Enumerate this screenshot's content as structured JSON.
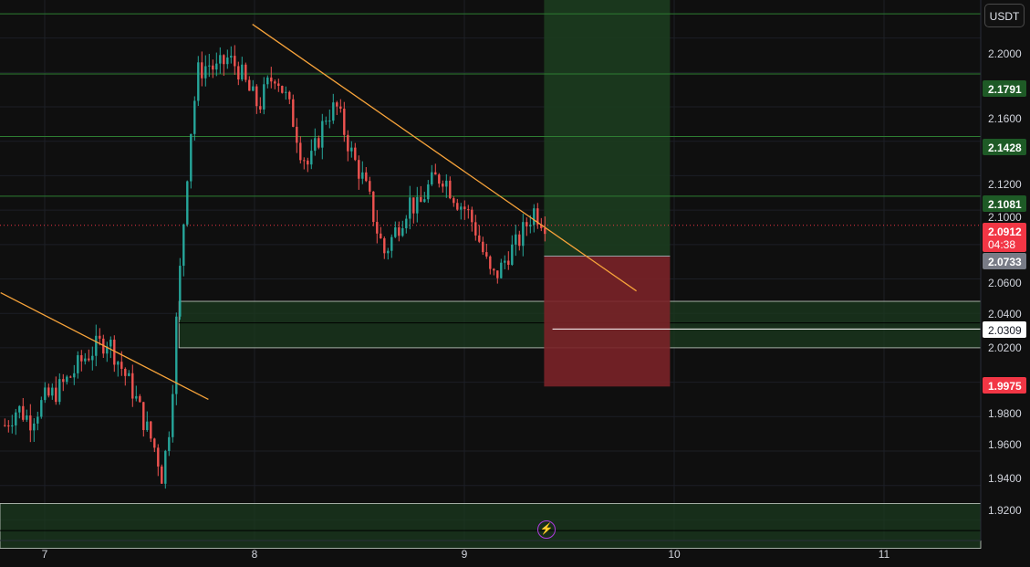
{
  "toolbar": {
    "currency": "USDT"
  },
  "price_scale": {
    "ticks": [
      "2.2000",
      "2.1600",
      "2.1200",
      "2.1000",
      "2.0600",
      "2.0400",
      "2.0200",
      "1.9800",
      "1.9600",
      "1.9400",
      "1.9200"
    ]
  },
  "time_scale": {
    "ticks": [
      "7",
      "8",
      "9",
      "10",
      "11"
    ]
  },
  "price_tags": {
    "tp2": "2.1791",
    "tp1": "2.1428",
    "level": "2.1081",
    "current_price": "2.0912",
    "countdown": "04:38",
    "entry": "2.0733",
    "mid": "2.0309",
    "stop": "1.9975"
  },
  "colors": {
    "background": "#0f0f0f",
    "up": "#26a69a",
    "down": "#ef5350",
    "trendline": "#f7a33a",
    "profit_zone": "#1b3a1f",
    "loss_zone": "#7a2228",
    "tag_green": "#1e5a26",
    "tag_red": "#f23645",
    "tag_gray": "#787b86"
  },
  "icons": {
    "bolt": "lightning-icon"
  },
  "chart_data": {
    "type": "candlestick",
    "pair_quote": "USDT",
    "x_axis_ticks": [
      "7",
      "8",
      "9",
      "10",
      "11"
    ],
    "ylim": [
      1.908,
      2.2221
    ],
    "grid": true,
    "horizontal_levels": [
      2.2141,
      2.1791,
      2.1428,
      2.1081,
      2.0912,
      2.0733,
      2.0309,
      1.9975
    ],
    "zones": [
      {
        "name": "support",
        "from": 2.02,
        "to": 2.047
      },
      {
        "name": "lower",
        "from": 1.9035,
        "to": 1.9295
      }
    ],
    "long_position": {
      "entry": 2.0733,
      "target": 2.2221,
      "stop": 1.9975,
      "x_from": 9.38,
      "x_to": 9.98
    },
    "trendlines": [
      {
        "x1": 6.79,
        "y1": 2.052,
        "x2": 7.78,
        "y2": 1.99
      },
      {
        "x1": 7.99,
        "y1": 2.208,
        "x2": 9.82,
        "y2": 2.053
      }
    ],
    "price_path": [
      [
        6.81,
        1.975
      ],
      [
        6.87,
        1.985
      ],
      [
        6.93,
        1.978
      ],
      [
        7.0,
        1.99
      ],
      [
        7.06,
        1.995
      ],
      [
        7.12,
        2.003
      ],
      [
        7.18,
        2.013
      ],
      [
        7.24,
        2.02
      ],
      [
        7.3,
        2.025
      ],
      [
        7.36,
        2.01
      ],
      [
        7.42,
        1.995
      ],
      [
        7.48,
        1.975
      ],
      [
        7.53,
        1.96
      ],
      [
        7.56,
        1.945
      ],
      [
        7.6,
        1.98
      ],
      [
        7.63,
        2.04
      ],
      [
        7.66,
        2.09
      ],
      [
        7.69,
        2.14
      ],
      [
        7.73,
        2.18
      ],
      [
        7.78,
        2.185
      ],
      [
        7.82,
        2.181
      ],
      [
        7.87,
        2.188
      ],
      [
        7.92,
        2.183
      ],
      [
        7.97,
        2.17
      ],
      [
        8.02,
        2.16
      ],
      [
        8.06,
        2.172
      ],
      [
        8.1,
        2.18
      ],
      [
        8.15,
        2.165
      ],
      [
        8.19,
        2.15
      ],
      [
        8.22,
        2.135
      ],
      [
        8.26,
        2.125
      ],
      [
        8.3,
        2.14
      ],
      [
        8.34,
        2.155
      ],
      [
        8.39,
        2.16
      ],
      [
        8.43,
        2.145
      ],
      [
        8.47,
        2.13
      ],
      [
        8.51,
        2.12
      ],
      [
        8.55,
        2.105
      ],
      [
        8.58,
        2.09
      ],
      [
        8.62,
        2.075
      ],
      [
        8.66,
        2.085
      ],
      [
        8.7,
        2.095
      ],
      [
        8.74,
        2.105
      ],
      [
        8.78,
        2.1
      ],
      [
        8.82,
        2.112
      ],
      [
        8.86,
        2.118
      ],
      [
        8.9,
        2.12
      ],
      [
        8.93,
        2.113
      ],
      [
        8.97,
        2.105
      ],
      [
        9.01,
        2.1
      ],
      [
        9.05,
        2.09
      ],
      [
        9.09,
        2.075
      ],
      [
        9.13,
        2.06
      ],
      [
        9.17,
        2.065
      ],
      [
        9.21,
        2.075
      ],
      [
        9.25,
        2.08
      ],
      [
        9.29,
        2.09
      ],
      [
        9.33,
        2.1
      ],
      [
        9.36,
        2.096
      ],
      [
        9.4,
        2.0912
      ]
    ]
  }
}
